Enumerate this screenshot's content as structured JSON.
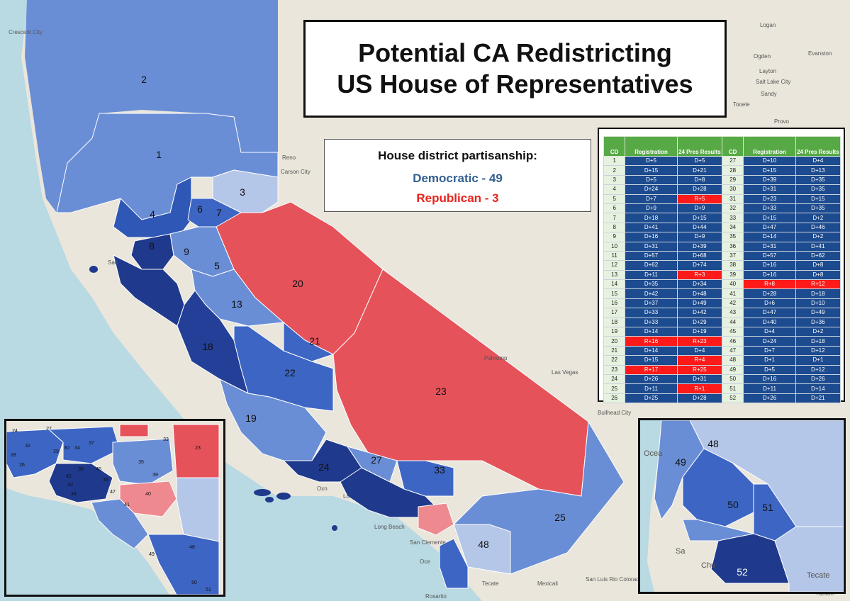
{
  "title": {
    "line1": "Potential CA Redistricting",
    "line2": "US House of Representatives"
  },
  "legend": {
    "heading": "House district partisanship:",
    "dem": "Democratic - 49",
    "rep": "Republican - 3"
  },
  "colors": {
    "dem_light": "#b5c7e8",
    "dem_mid": "#6a8ed6",
    "dem_strong": "#3d66c4",
    "dem_dark": "#1f3a8c",
    "rep": "#e5525a",
    "rep_light": "#ee8a8f",
    "table_header": "#57a946",
    "table_dem": "#1d4b8f",
    "table_rep": "#ff1a1a"
  },
  "table": {
    "headers": [
      "CD",
      "Registration",
      "24 Pres Results",
      "CD",
      "Registration",
      "24 Pres Results"
    ],
    "rows": [
      [
        "1",
        "D+5",
        "D+5",
        "27",
        "D+10",
        "D+4"
      ],
      [
        "2",
        "D+15",
        "D+21",
        "28",
        "D+15",
        "D+13"
      ],
      [
        "3",
        "D+5",
        "D+8",
        "29",
        "D+39",
        "D+35"
      ],
      [
        "4",
        "D+24",
        "D+28",
        "30",
        "D+31",
        "D+35"
      ],
      [
        "5",
        "D+7",
        "R+5",
        "31",
        "D+23",
        "D+15"
      ],
      [
        "6",
        "D+9",
        "D+9",
        "32",
        "D+33",
        "D+35"
      ],
      [
        "7",
        "D+18",
        "D+15",
        "33",
        "D+15",
        "D+2"
      ],
      [
        "8",
        "D+41",
        "D+44",
        "34",
        "D+47",
        "D+46"
      ],
      [
        "9",
        "D+16",
        "D+9",
        "35",
        "D+14",
        "D+2"
      ],
      [
        "10",
        "D+31",
        "D+39",
        "36",
        "D+31",
        "D+41"
      ],
      [
        "11",
        "D+57",
        "D+68",
        "37",
        "D+57",
        "D+62"
      ],
      [
        "12",
        "D+62",
        "D+74",
        "38",
        "D+16",
        "D+8"
      ],
      [
        "13",
        "D+11",
        "R+3",
        "39",
        "D+16",
        "D+8"
      ],
      [
        "14",
        "D+35",
        "D+34",
        "40",
        "R+8",
        "R+12"
      ],
      [
        "15",
        "D+42",
        "D+48",
        "41",
        "D+28",
        "D+18"
      ],
      [
        "16",
        "D+37",
        "D+49",
        "42",
        "D+6",
        "D+10"
      ],
      [
        "17",
        "D+33",
        "D+42",
        "43",
        "D+47",
        "D+49"
      ],
      [
        "18",
        "D+33",
        "D+29",
        "44",
        "D+40",
        "D+36"
      ],
      [
        "19",
        "D+14",
        "D+19",
        "45",
        "D+4",
        "D+2"
      ],
      [
        "20",
        "R+16",
        "R+23",
        "46",
        "D+24",
        "D+18"
      ],
      [
        "21",
        "D+14",
        "D+4",
        "47",
        "D+7",
        "D+12"
      ],
      [
        "22",
        "D+15",
        "R+4",
        "48",
        "D+1",
        "D+1"
      ],
      [
        "23",
        "R+17",
        "R+25",
        "49",
        "D+5",
        "D+12"
      ],
      [
        "24",
        "D+26",
        "D+31",
        "50",
        "D+16",
        "D+26"
      ],
      [
        "25",
        "D+11",
        "R+1",
        "51",
        "D+11",
        "D+14"
      ],
      [
        "26",
        "D+25",
        "D+28",
        "52",
        "D+26",
        "D+21"
      ]
    ]
  },
  "map_labels": {
    "d1": "1",
    "d2": "2",
    "d3": "3",
    "d4": "4",
    "d5": "5",
    "d6": "6",
    "d7": "7",
    "d8": "8",
    "d9": "9",
    "d13": "13",
    "d18": "18",
    "d19": "19",
    "d20": "20",
    "d21": "21",
    "d22": "22",
    "d23": "23",
    "d24": "24",
    "d25": "25",
    "d27": "27",
    "d33": "33",
    "d48": "48"
  },
  "place_labels": {
    "logan": "Logan",
    "ogden": "Ogden",
    "evanston": "Evanston",
    "layton": "Layton",
    "slc": "Salt Lake City",
    "sandy": "Sandy",
    "tooele": "Tooele",
    "provo": "Provo",
    "reno": "Reno",
    "carson": "Carson City",
    "lasvegas": "Las Vegas",
    "pahrump": "Pahrump",
    "bullhead": "Bullhead City",
    "mexicali": "Mexicali",
    "sanluis": "San Luis Rio Colorado",
    "tecate": "Tecate",
    "tucson": "Tucson",
    "rosarito": "Rosarito",
    "longbeach": "Long Beach",
    "sanclemente": "San Clemente",
    "crescent": "Crescent City",
    "sanfran": "San",
    "oxnard": "Oxn",
    "la": "Lo",
    "oce": "Oce"
  },
  "inset_la": {
    "labels": [
      "24",
      "27",
      "32",
      "28",
      "29",
      "30",
      "26",
      "34",
      "37",
      "36",
      "42",
      "43",
      "44",
      "45",
      "46",
      "47",
      "40",
      "41",
      "33",
      "23",
      "35",
      "39",
      "49",
      "48",
      "50",
      "51"
    ]
  },
  "inset_sd": {
    "labels": [
      "48",
      "49",
      "50",
      "51",
      "52"
    ],
    "places": {
      "ocean": "Ocea",
      "san": "Sa",
      "chula": "Chu",
      "tecate": "Tecate"
    }
  }
}
